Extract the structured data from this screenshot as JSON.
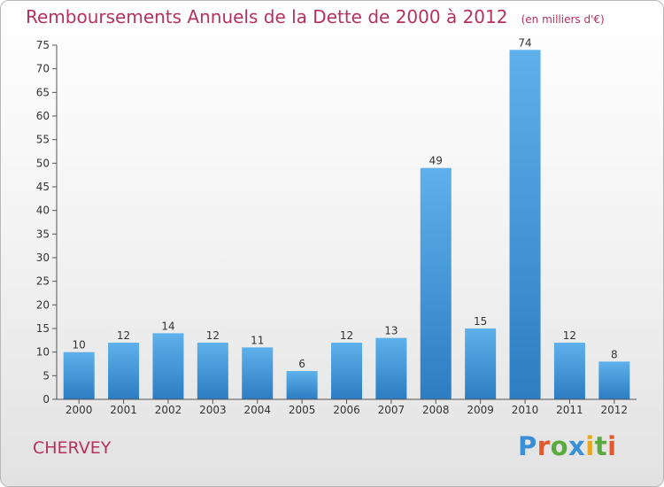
{
  "title": "Remboursements Annuels de la Dette de 2000 à 2012",
  "unit": "(en milliers d'€)",
  "commune": "CHERVEY",
  "brand": {
    "letters": [
      {
        "ch": "P",
        "color": "#3b8fd6"
      },
      {
        "ch": "r",
        "color": "#e4592b"
      },
      {
        "ch": "o",
        "color": "#5aab3d"
      },
      {
        "ch": "x",
        "color": "#3b8fd6"
      },
      {
        "ch": "i",
        "color": "#e8a71f"
      },
      {
        "ch": "t",
        "color": "#5aab3d"
      },
      {
        "ch": "i",
        "color": "#e4592b"
      }
    ]
  },
  "colors": {
    "bar_light": "#5eb1ea",
    "bar_dark": "#2c7dc2",
    "title": "#b5325e",
    "axis": "#555555"
  },
  "chart_data": {
    "type": "bar",
    "categories": [
      "2000",
      "2001",
      "2002",
      "2003",
      "2004",
      "2005",
      "2006",
      "2007",
      "2008",
      "2009",
      "2010",
      "2011",
      "2012"
    ],
    "values": [
      10,
      12,
      14,
      12,
      11,
      6,
      12,
      13,
      49,
      15,
      74,
      12,
      8
    ],
    "ylim": [
      0,
      75
    ],
    "yticks": [
      0,
      5,
      10,
      15,
      20,
      25,
      30,
      35,
      40,
      45,
      50,
      55,
      60,
      65,
      70,
      75
    ],
    "grid": false,
    "legend": "none"
  }
}
